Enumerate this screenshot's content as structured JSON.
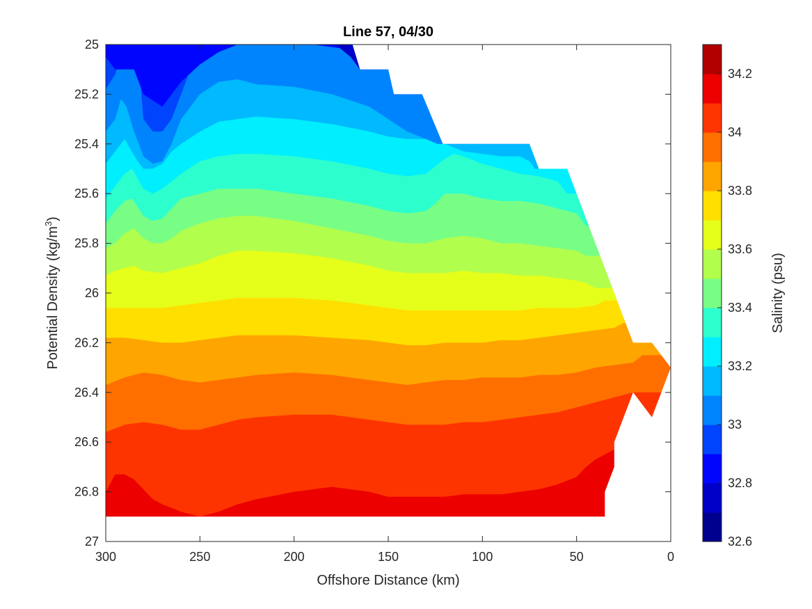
{
  "chart_data": {
    "type": "filled-contour",
    "title": "Line 57, 04/30",
    "xlabel": "Offshore Distance (km)",
    "ylabel_main": "Potential Density (kg/m",
    "ylabel_sup": "3",
    "ylabel_tail": ")",
    "xlim": [
      300,
      0
    ],
    "x_reversed": true,
    "ylim": [
      25,
      27
    ],
    "y_reversed": true,
    "xticks": [
      300,
      250,
      200,
      150,
      100,
      50,
      0
    ],
    "xtick_labels": [
      "300",
      "250",
      "200",
      "150",
      "100",
      "50",
      "0"
    ],
    "yticks": [
      25,
      25.2,
      25.4,
      25.6,
      25.8,
      26,
      26.2,
      26.4,
      26.6,
      26.8,
      27
    ],
    "ytick_labels": [
      "25",
      "25.2",
      "25.4",
      "25.6",
      "25.8",
      "26",
      "26.2",
      "26.4",
      "26.6",
      "26.8",
      "27"
    ],
    "grid": false,
    "colorbar": {
      "label": "Salinity (psu)",
      "range": [
        32.6,
        34.3
      ],
      "level_step": 0.1,
      "levels": [
        32.6,
        32.7,
        32.8,
        32.9,
        33.0,
        33.1,
        33.2,
        33.3,
        33.4,
        33.5,
        33.6,
        33.7,
        33.8,
        33.9,
        34.0,
        34.1,
        34.2,
        34.3
      ],
      "colors": [
        "#00008f",
        "#0000c8",
        "#0006fe",
        "#0044fe",
        "#0084fe",
        "#00b9fe",
        "#00eefe",
        "#2dfecd",
        "#79fe85",
        "#b2fe4c",
        "#e5fe1a",
        "#fedf00",
        "#fea500",
        "#fe6f00",
        "#fe3400",
        "#ec0000",
        "#b00000"
      ],
      "tick_values": [
        32.6,
        32.8,
        33.0,
        33.2,
        33.4,
        33.6,
        33.8,
        34.0,
        34.2
      ],
      "tick_labels": [
        "32.6",
        "32.8",
        "33",
        "33.2",
        "33.4",
        "33.6",
        "33.8",
        "34",
        "34.2"
      ]
    },
    "data_extent": {
      "description": "bottom boundary of sampled data vs distance",
      "distance_km": [
        300,
        35,
        35,
        30,
        30,
        20,
        10,
        0
      ],
      "max_density": [
        26.9,
        26.9,
        26.8,
        26.7,
        26.6,
        26.4,
        26.5,
        26.3
      ]
    },
    "surface_boundary": {
      "distance_km": [
        300,
        169,
        165,
        150,
        147,
        132,
        121,
        75,
        70,
        55,
        50,
        45,
        40,
        35,
        30,
        25,
        20,
        10,
        0
      ],
      "min_density": [
        25,
        25,
        25.1,
        25.1,
        25.2,
        25.2,
        25.4,
        25.4,
        25.5,
        25.5,
        25.6,
        25.7,
        25.8,
        25.9,
        26.0,
        26.1,
        26.2,
        26.2,
        26.3
      ]
    },
    "isohalines": [
      {
        "salinity": 32.7,
        "distance_km": [
          300,
          286,
          270,
          250,
          230,
          210,
          190,
          176,
          170
        ],
        "density": [
          25.0,
          25.0,
          25.0,
          25.0,
          25.0,
          25.0,
          25.0,
          25.0,
          25.0
        ]
      },
      {
        "salinity": 32.8,
        "distance_km": [
          300,
          292,
          286,
          270,
          250,
          230,
          210,
          195,
          178,
          170,
          165
        ],
        "density": [
          25.0,
          25.0,
          25.0,
          25.0,
          25.0,
          25.0,
          25.0,
          25.0,
          25.0,
          25.05,
          25.1
        ]
      },
      {
        "salinity": 32.9,
        "distance_km": [
          300,
          295,
          290,
          285,
          280,
          270,
          260,
          250,
          240,
          230,
          210,
          190,
          170,
          165,
          150,
          147,
          132
        ],
        "density": [
          25.05,
          25.1,
          25.1,
          25.1,
          25.2,
          25.25,
          25.15,
          25.08,
          25.03,
          25.0,
          25.0,
          25.0,
          25.02,
          25.1,
          25.1,
          25.2,
          25.2
        ]
      },
      {
        "salinity": 33.0,
        "distance_km": [
          300,
          295,
          290,
          287,
          283,
          280,
          275,
          270,
          265,
          260,
          255,
          250,
          245,
          240,
          230,
          220,
          200,
          180,
          160,
          150,
          140,
          130,
          124,
          121
        ],
        "density": [
          25.18,
          25.12,
          25.0,
          25.0,
          25.03,
          25.3,
          25.35,
          25.35,
          25.3,
          25.2,
          25.1,
          25.05,
          25.0,
          25.0,
          25.0,
          25.0,
          25.0,
          25.0,
          25.03,
          25.08,
          25.13,
          25.2,
          25.3,
          25.4
        ]
      },
      {
        "salinity": 33.1,
        "distance_km": [
          300,
          295,
          292,
          289,
          285,
          280,
          275,
          270,
          265,
          260,
          250,
          240,
          230,
          220,
          200,
          180,
          160,
          150,
          140,
          130,
          124
        ],
        "density": [
          25.35,
          25.3,
          25.22,
          25.25,
          25.35,
          25.45,
          25.48,
          25.47,
          25.4,
          25.3,
          25.2,
          25.15,
          25.14,
          25.16,
          25.17,
          25.2,
          25.25,
          25.3,
          25.35,
          25.38,
          25.4
        ]
      },
      {
        "salinity": 33.2,
        "distance_km": [
          300,
          295,
          290,
          287,
          283,
          280,
          275,
          270,
          265,
          260,
          250,
          240,
          230,
          220,
          200,
          180,
          160,
          150,
          140,
          130,
          125,
          120,
          110,
          100,
          90,
          80,
          75,
          72
        ],
        "density": [
          25.48,
          25.43,
          25.38,
          25.42,
          25.47,
          25.5,
          25.5,
          25.48,
          25.43,
          25.4,
          25.35,
          25.31,
          25.3,
          25.29,
          25.3,
          25.32,
          25.35,
          25.37,
          25.38,
          25.38,
          25.37,
          25.4,
          25.43,
          25.44,
          25.45,
          25.45,
          25.47,
          25.5
        ]
      },
      {
        "salinity": 33.3,
        "distance_km": [
          300,
          295,
          290,
          286,
          280,
          275,
          270,
          265,
          260,
          250,
          240,
          230,
          220,
          200,
          180,
          160,
          150,
          140,
          130,
          125,
          120,
          115,
          110,
          100,
          90,
          80,
          70,
          60,
          55
        ],
        "density": [
          25.62,
          25.57,
          25.52,
          25.5,
          25.58,
          25.6,
          25.58,
          25.55,
          25.52,
          25.47,
          25.45,
          25.44,
          25.44,
          25.45,
          25.47,
          25.5,
          25.52,
          25.53,
          25.52,
          25.49,
          25.46,
          25.44,
          25.45,
          25.48,
          25.5,
          25.52,
          25.53,
          25.55,
          25.6
        ]
      },
      {
        "salinity": 33.4,
        "distance_km": [
          300,
          295,
          290,
          286,
          280,
          275,
          270,
          265,
          260,
          250,
          240,
          230,
          220,
          200,
          180,
          160,
          150,
          140,
          130,
          125,
          120,
          110,
          100,
          90,
          80,
          70,
          60,
          50,
          45
        ],
        "density": [
          25.72,
          25.67,
          25.63,
          25.62,
          25.69,
          25.71,
          25.7,
          25.66,
          25.62,
          25.6,
          25.58,
          25.58,
          25.58,
          25.6,
          25.62,
          25.65,
          25.67,
          25.68,
          25.67,
          25.64,
          25.6,
          25.6,
          25.62,
          25.63,
          25.63,
          25.64,
          25.66,
          25.68,
          25.73
        ]
      },
      {
        "salinity": 33.5,
        "distance_km": [
          300,
          295,
          290,
          285,
          280,
          275,
          270,
          265,
          260,
          250,
          240,
          230,
          220,
          200,
          180,
          160,
          150,
          140,
          130,
          120,
          110,
          100,
          90,
          80,
          70,
          60,
          50,
          45
        ],
        "density": [
          25.82,
          25.8,
          25.76,
          25.74,
          25.78,
          25.8,
          25.8,
          25.78,
          25.75,
          25.72,
          25.7,
          25.69,
          25.69,
          25.71,
          25.74,
          25.77,
          25.79,
          25.8,
          25.8,
          25.78,
          25.77,
          25.78,
          25.8,
          25.8,
          25.81,
          25.82,
          25.83,
          25.85
        ]
      },
      {
        "salinity": 33.6,
        "distance_km": [
          300,
          295,
          290,
          285,
          280,
          270,
          260,
          250,
          240,
          230,
          220,
          200,
          180,
          160,
          150,
          140,
          130,
          120,
          110,
          100,
          90,
          80,
          70,
          60,
          50,
          45,
          40
        ],
        "density": [
          25.93,
          25.91,
          25.9,
          25.89,
          25.91,
          25.92,
          25.9,
          25.88,
          25.85,
          25.83,
          25.83,
          25.84,
          25.86,
          25.89,
          25.91,
          25.92,
          25.92,
          25.92,
          25.91,
          25.92,
          25.92,
          25.93,
          25.93,
          25.94,
          25.95,
          25.96,
          25.98
        ]
      },
      {
        "salinity": 33.7,
        "distance_km": [
          300,
          290,
          280,
          270,
          260,
          250,
          240,
          230,
          220,
          200,
          180,
          160,
          150,
          140,
          130,
          120,
          110,
          100,
          90,
          80,
          70,
          60,
          50,
          40,
          35
        ],
        "density": [
          26.06,
          26.06,
          26.06,
          26.06,
          26.05,
          26.04,
          26.03,
          26.02,
          26.02,
          26.02,
          26.03,
          26.05,
          26.06,
          26.07,
          26.07,
          26.07,
          26.07,
          26.07,
          26.07,
          26.07,
          26.06,
          26.06,
          26.06,
          26.05,
          26.03
        ]
      },
      {
        "salinity": 33.8,
        "distance_km": [
          300,
          290,
          280,
          270,
          260,
          250,
          240,
          230,
          220,
          200,
          180,
          160,
          150,
          140,
          130,
          120,
          110,
          100,
          90,
          80,
          70,
          60,
          50,
          40,
          30,
          25
        ],
        "density": [
          26.18,
          26.18,
          26.19,
          26.2,
          26.2,
          26.19,
          26.18,
          26.17,
          26.17,
          26.17,
          26.18,
          26.19,
          26.2,
          26.21,
          26.21,
          26.2,
          26.2,
          26.2,
          26.19,
          26.19,
          26.18,
          26.17,
          26.16,
          26.15,
          26.14,
          26.12
        ]
      },
      {
        "salinity": 33.9,
        "distance_km": [
          300,
          290,
          280,
          270,
          260,
          250,
          240,
          230,
          220,
          200,
          180,
          160,
          150,
          140,
          130,
          120,
          110,
          100,
          90,
          80,
          70,
          60,
          50,
          40,
          30,
          20,
          15
        ],
        "density": [
          26.37,
          26.34,
          26.32,
          26.33,
          26.35,
          26.36,
          26.35,
          26.34,
          26.33,
          26.32,
          26.33,
          26.35,
          26.36,
          26.37,
          26.36,
          26.35,
          26.35,
          26.34,
          26.34,
          26.34,
          26.33,
          26.33,
          26.32,
          26.3,
          26.29,
          26.28,
          26.25
        ]
      },
      {
        "salinity": 34.0,
        "distance_km": [
          300,
          290,
          280,
          270,
          260,
          250,
          240,
          230,
          220,
          200,
          180,
          160,
          150,
          140,
          130,
          120,
          110,
          100,
          90,
          80,
          70,
          60,
          50,
          40,
          30,
          25,
          20
        ],
        "density": [
          26.56,
          26.53,
          26.52,
          26.53,
          26.55,
          26.55,
          26.53,
          26.51,
          26.5,
          26.49,
          26.49,
          26.51,
          26.52,
          26.53,
          26.53,
          26.53,
          26.52,
          26.52,
          26.51,
          26.5,
          26.49,
          26.48,
          26.46,
          26.44,
          26.42,
          26.41,
          26.4
        ]
      },
      {
        "salinity": 34.1,
        "distance_km": [
          300,
          295,
          290,
          285,
          280,
          275,
          270,
          260,
          250,
          240,
          230,
          220,
          200,
          180,
          160,
          150,
          140,
          130,
          120,
          110,
          100,
          90,
          80,
          70,
          60,
          50,
          45,
          40,
          35,
          30
        ],
        "density": [
          26.8,
          26.73,
          26.73,
          26.75,
          26.79,
          26.83,
          26.85,
          26.88,
          26.9,
          26.88,
          26.85,
          26.83,
          26.8,
          26.78,
          26.8,
          26.82,
          26.82,
          26.82,
          26.82,
          26.81,
          26.81,
          26.81,
          26.8,
          26.79,
          26.77,
          26.74,
          26.7,
          26.67,
          26.65,
          26.63
        ]
      }
    ]
  }
}
